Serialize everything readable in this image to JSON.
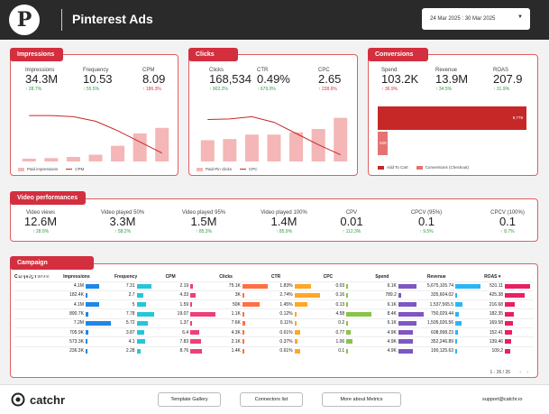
{
  "header": {
    "title": "Pinterest Ads",
    "date_range": "24 Mar 2025 : 30 Mar 2025",
    "logo_letter": "P"
  },
  "impressions": {
    "tab": "Impressions",
    "metrics": [
      {
        "label": "Impressions",
        "value": "34.3M",
        "change": "↑ 28.7%",
        "dir": "up"
      },
      {
        "label": "Frequency",
        "value": "10.53",
        "change": "↑ 55.5%",
        "dir": "up"
      },
      {
        "label": "CPM",
        "value": "8.09",
        "change": "↑ 186.3%",
        "dir": "down"
      }
    ],
    "legend": [
      "Paid impressions",
      "CPM"
    ],
    "bars": [
      0.05,
      0.06,
      0.08,
      0.12,
      0.28,
      0.5,
      0.6
    ],
    "line": [
      0.82,
      0.82,
      0.8,
      0.72,
      0.55,
      0.35,
      0.15
    ]
  },
  "clicks": {
    "tab": "Clicks",
    "metrics": [
      {
        "label": "Clicks",
        "value": "168,534",
        "change": "↑ 902.2%",
        "dir": "up"
      },
      {
        "label": "CTR",
        "value": "0.49%",
        "change": "↑ 679.0%",
        "dir": "up"
      },
      {
        "label": "CPC",
        "value": "2.65",
        "change": "↑ 238.6%",
        "dir": "down"
      }
    ],
    "legend": [
      "Paid Pin clicks",
      "CPC"
    ],
    "bars": [
      0.38,
      0.4,
      0.48,
      0.48,
      0.52,
      0.58,
      0.78
    ],
    "line": [
      0.75,
      0.76,
      0.8,
      0.7,
      0.5,
      0.3,
      0.12
    ]
  },
  "conversions": {
    "tab": "Conversions",
    "metrics": [
      {
        "label": "Spend",
        "value": "103.2K",
        "change": "↑ 36.9%",
        "dir": "down"
      },
      {
        "label": "Revenue",
        "value": "13.9M",
        "change": "↑ 34.5%",
        "dir": "up"
      },
      {
        "label": "ROAS",
        "value": "207.9",
        "change": "↑ 31.9%",
        "dir": "up"
      }
    ],
    "legend": [
      "Add To Cart",
      "Conversions (Checkout)"
    ],
    "bar1_label": "9,778",
    "bar2_label": "628",
    "bar1": 9778,
    "bar2": 628
  },
  "video": {
    "tab": "Video performances",
    "metrics": [
      {
        "label": "Video views",
        "value": "12.6M",
        "change": "↑ 28.0%"
      },
      {
        "label": "Video played 50%",
        "value": "3.3M",
        "change": "↑ 58.2%"
      },
      {
        "label": "Video played 95%",
        "value": "1.5M",
        "change": "↑ 85.3%"
      },
      {
        "label": "Video played 100%",
        "value": "1.4M",
        "change": "↑ 85.9%"
      },
      {
        "label": "CPV",
        "value": "0.01",
        "change": "↑ 112.3%"
      },
      {
        "label": "CPCV (95%)",
        "value": "0.1",
        "change": "↑ 9.5%"
      },
      {
        "label": "CPCV (100%)",
        "value": "0.1",
        "change": "↑ 8.7%"
      }
    ]
  },
  "campaigns": {
    "tab": "Campaign Performances",
    "columns": [
      "Campaign name",
      "Impressions",
      "Frequency",
      "CPM",
      "Clicks",
      "CTR",
      "CPC",
      "Spend",
      "Revenue",
      "ROAS ▾"
    ],
    "colors": [
      "#1e88e5",
      "#26c6da",
      "#ec407a",
      "#ff7043",
      "#ffa726",
      "#8bc34a",
      "#7e57c2",
      "#29b6f6",
      "#e91e63"
    ],
    "rows": [
      [
        "4.1M",
        "7.31",
        "2.19",
        "75.1K",
        "1.83%",
        "0.03",
        "6.1K",
        "5,675,105.74",
        "531.11"
      ],
      [
        "182.4K",
        "2.7",
        "4.33",
        "3K",
        "2.74%",
        "0.16",
        "789.2",
        "335,604.02",
        "425.38"
      ],
      [
        "4.1M",
        "5",
        "1.59",
        "50K",
        "1.45%",
        "0.13",
        "6.1K",
        "1,537,565.5",
        "216.68"
      ],
      [
        "890.7K",
        "7.78",
        "19.07",
        "1.1K",
        "0.12%",
        "4.58",
        "8.4K",
        "750,029.44",
        "182.35"
      ],
      [
        "7.2M",
        "5.72",
        "1.37",
        "7.6K",
        "0.11%",
        "0.2",
        "6.1K",
        "1,505,026.56",
        "169.58"
      ],
      [
        "705.9K",
        "3.87",
        "6.4",
        "4.3K",
        "0.61%",
        "0.77",
        "4.9K",
        "608,998.23",
        "152.41"
      ],
      [
        "573.3K",
        "4.1",
        "7.83",
        "2.1K",
        "0.37%",
        "1.06",
        "4.9K",
        "352,246.89",
        "139.46"
      ],
      [
        "236.3K",
        "2.28",
        "8.76",
        "1.4K",
        "0.61%",
        "0.1",
        "4.9K",
        "190,125.63",
        "109.2"
      ]
    ],
    "bars": [
      [
        0.55,
        0.6,
        0.1,
        1.0,
        0.65,
        0.02,
        0.72,
        1.0,
        1.0
      ],
      [
        0.05,
        0.25,
        0.22,
        0.05,
        1.0,
        0.03,
        0.1,
        0.06,
        0.8
      ],
      [
        0.55,
        0.38,
        0.08,
        0.67,
        0.52,
        0.03,
        0.72,
        0.27,
        0.4
      ],
      [
        0.12,
        0.7,
        1.0,
        0.02,
        0.05,
        1.0,
        1.0,
        0.13,
        0.34
      ],
      [
        1.0,
        0.45,
        0.07,
        0.1,
        0.04,
        0.04,
        0.72,
        0.26,
        0.32
      ],
      [
        0.1,
        0.3,
        0.34,
        0.06,
        0.22,
        0.17,
        0.58,
        0.11,
        0.29
      ],
      [
        0.08,
        0.32,
        0.41,
        0.03,
        0.13,
        0.23,
        0.58,
        0.06,
        0.26
      ],
      [
        0.03,
        0.16,
        0.46,
        0.02,
        0.22,
        0.02,
        0.58,
        0.03,
        0.2
      ]
    ],
    "pagination": "1 - 26 / 26"
  },
  "footer": {
    "brand": "catchr",
    "buttons": [
      "Template Gallery",
      "Connectors list",
      "More about Metrics"
    ],
    "email": "support@catchr.io"
  }
}
